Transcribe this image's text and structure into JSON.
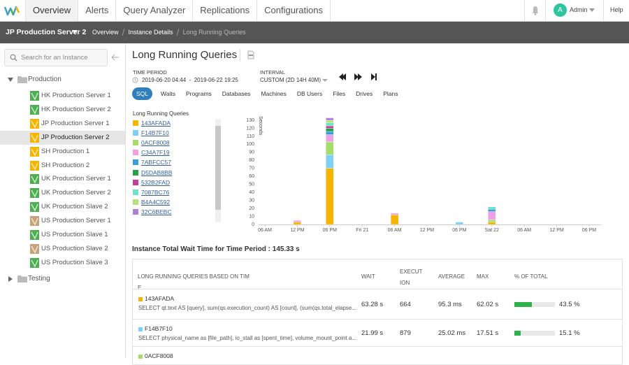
{
  "nav": {
    "tabs": [
      "Overview",
      "Alerts",
      "Query Analyzer",
      "Replications",
      "Configurations"
    ],
    "user_initial": "A",
    "user": "Admin",
    "help": "Help"
  },
  "toolbar": {
    "instance": "JP Production Server 2",
    "breadcrumbs": [
      "Overview",
      "Instance Details",
      "Long Running Queries"
    ]
  },
  "sidebar": {
    "search_placeholder": "Search for an Instance",
    "groups": [
      {
        "label": "Production",
        "items": [
          {
            "label": "HK Production Server 1",
            "color": "#4cb050"
          },
          {
            "label": "HK Production Server 2",
            "color": "#4cb050"
          },
          {
            "label": "JP Production Server 1",
            "color": "#f5b400"
          },
          {
            "label": "JP Production Server 2",
            "color": "#f5b400",
            "selected": true
          },
          {
            "label": "SH Production 1",
            "color": "#f5b400"
          },
          {
            "label": "SH Production 2",
            "color": "#f5b400"
          },
          {
            "label": "UK Production Server 1",
            "color": "#4cb050"
          },
          {
            "label": "UK Production Server 2",
            "color": "#4cb050"
          },
          {
            "label": "UK Production Slave 2",
            "color": "#4cb050"
          },
          {
            "label": "US Production Server 1",
            "color": "#c8a27a"
          },
          {
            "label": "US Production Slave 1",
            "color": "#4cb050"
          },
          {
            "label": "US Production Slave 2",
            "color": "#c8a27a"
          },
          {
            "label": "US Production Slave 3",
            "color": "#4cb050"
          }
        ]
      },
      {
        "label": "Testing"
      }
    ]
  },
  "page": {
    "title": "Long Running Queries",
    "time_period_label": "TIME PERIOD",
    "time_period": "2019-06-20 04:44  -  2019-06-22 19:25",
    "interval_label": "INTERVAL",
    "interval": "CUSTOM (2D 14H 40M)",
    "tabs": [
      "SQL",
      "Waits",
      "Programs",
      "Databases",
      "Machines",
      "DB Users",
      "Files",
      "Drives",
      "Plans"
    ]
  },
  "chart_data": {
    "type": "bar",
    "stacked": true,
    "legend_title": "Long Running Queries",
    "y_label": "Seconds",
    "categories": [
      "06 AM",
      "12 PM",
      "06 PM",
      "Fri 21",
      "06 AM",
      "12 PM",
      "06 PM",
      "Sat 22",
      "06 AM",
      "12 PM",
      "06 PM"
    ],
    "ylim": [
      0,
      130
    ],
    "yticks": [
      0,
      10,
      20,
      30,
      40,
      50,
      60,
      70,
      80,
      90,
      100,
      110,
      120,
      130
    ],
    "grid": false,
    "series": [
      {
        "name": "143AFADA",
        "color": "#f5b400",
        "values": [
          null,
          3,
          70,
          null,
          12,
          null,
          null,
          3,
          null,
          null,
          null
        ]
      },
      {
        "name": "F14B7F10",
        "color": "#7fd0f5",
        "values": [
          null,
          null,
          17,
          null,
          null,
          null,
          3,
          null,
          null,
          null,
          null
        ]
      },
      {
        "name": "0ACF8008",
        "color": "#a6dc6a",
        "values": [
          null,
          null,
          16,
          null,
          null,
          null,
          null,
          3,
          null,
          null,
          null
        ]
      },
      {
        "name": "C34A7F19",
        "color": "#f0a0e6",
        "values": [
          null,
          2,
          9,
          null,
          2,
          null,
          null,
          10,
          null,
          null,
          null
        ]
      },
      {
        "name": "7ABFCC57",
        "color": "#3a9fd6",
        "values": [
          null,
          null,
          4,
          null,
          null,
          null,
          null,
          3,
          null,
          null,
          null
        ]
      },
      {
        "name": "D5DAB8BB",
        "color": "#27a04a",
        "values": [
          null,
          null,
          4,
          null,
          null,
          null,
          null,
          null,
          null,
          null,
          null
        ]
      },
      {
        "name": "532B2FAD",
        "color": "#c23fa0",
        "values": [
          null,
          null,
          3,
          null,
          null,
          null,
          null,
          null,
          null,
          null,
          null
        ]
      },
      {
        "name": "7087BC76",
        "color": "#6fe3c3",
        "values": [
          null,
          null,
          4,
          null,
          null,
          null,
          null,
          3,
          null,
          null,
          null
        ]
      },
      {
        "name": "B4A4C592",
        "color": "#b8e07e",
        "values": [
          null,
          null,
          3,
          null,
          null,
          null,
          null,
          null,
          null,
          null,
          null
        ]
      },
      {
        "name": "32C6BEBC",
        "color": "#b07ed6",
        "values": [
          null,
          null,
          3,
          null,
          null,
          null,
          null,
          null,
          null,
          null,
          null
        ]
      }
    ]
  },
  "summary": "Instance Total Wait Time for Time Period : 145.33 s",
  "table": {
    "headers": [
      "LONG RUNNING QUERIES BASED ON TIME",
      "WAIT",
      "EXECUTION",
      "AVERAGE",
      "MAX",
      "% OF TOTAL"
    ],
    "rows": [
      {
        "name": "143AFADA",
        "color": "#f5b400",
        "query": "SELECT qt.text AS [query], sum(qs.execution_count) AS [count], (sum(qs.total_elapse...",
        "wait": "63.28 s",
        "executions": "664",
        "average": "95.3 ms",
        "max": "62.02 s",
        "percent": 43.5,
        "percent_label": "43.5 %"
      },
      {
        "name": "F14B7F10",
        "color": "#7fd0f5",
        "query": "SELECT physical_name as [file_path], io_stall as [spent_time], volume_mount_point a...",
        "wait": "21.99 s",
        "executions": "879",
        "average": "25.02 ms",
        "max": "17.51 s",
        "percent": 15.1,
        "percent_label": "15.1 %"
      },
      {
        "name": "0ACF8008",
        "color": "#a6dc6a"
      }
    ]
  }
}
